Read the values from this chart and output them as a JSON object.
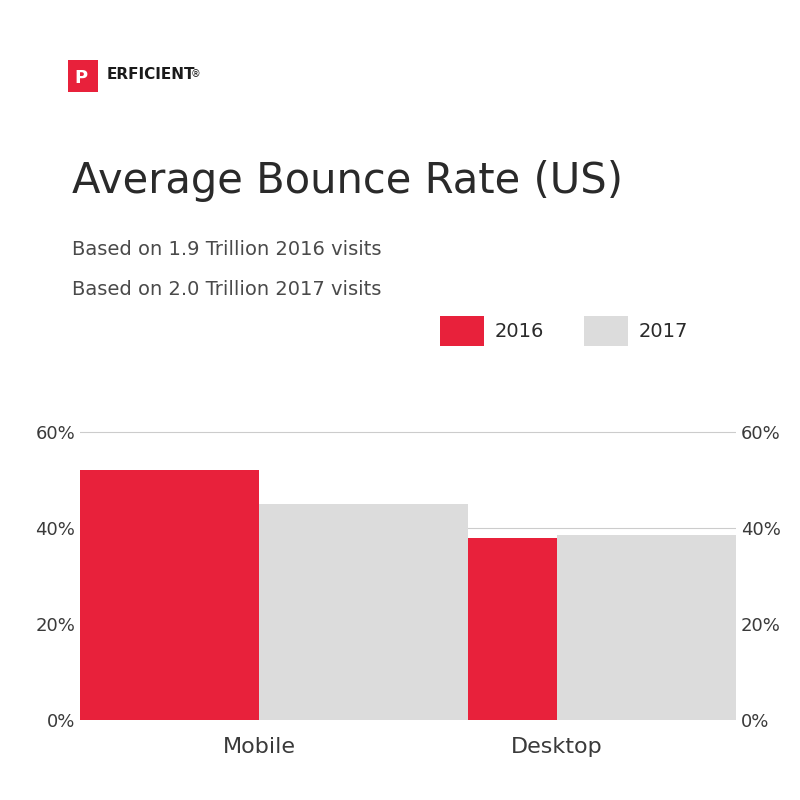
{
  "title": "Average Bounce Rate (US)",
  "subtitle1": "Based on 1.9 Trillion 2016 visits",
  "subtitle2": "Based on 2.0 Trillion 2017 visits",
  "categories": [
    "Mobile",
    "Desktop"
  ],
  "values_2016": [
    0.52,
    0.38
  ],
  "values_2017": [
    0.45,
    0.385
  ],
  "color_2016": "#E8213B",
  "color_2017": "#DCDCDC",
  "ylim": [
    0,
    0.7
  ],
  "yticks": [
    0,
    0.2,
    0.4,
    0.6
  ],
  "ytick_labels": [
    "0%",
    "20%",
    "40%",
    "60%"
  ],
  "bar_width": 0.35,
  "background_color": "#FFFFFF",
  "text_color": "#3a3a3a",
  "grid_color": "#CCCCCC",
  "logo_text_p": "P",
  "logo_text_erficient": "ERFICIENT",
  "logo_color_p_box": "#E8213B",
  "logo_color_text": "#1a1a1a"
}
